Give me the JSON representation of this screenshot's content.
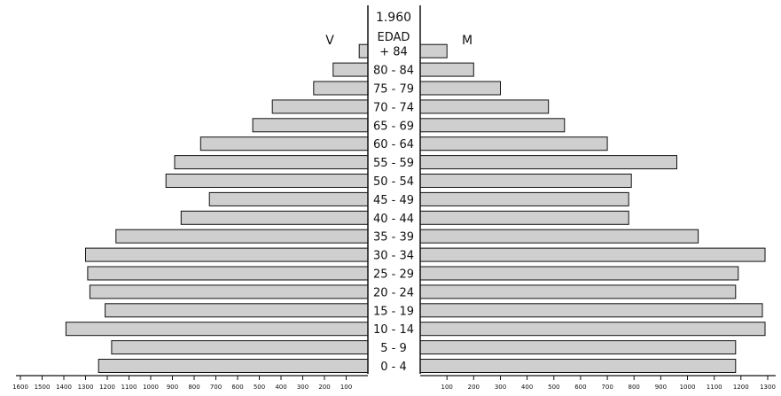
{
  "chart_data": {
    "type": "bar",
    "orientation": "horizontal-population-pyramid",
    "title": "1.960",
    "center_label": "EDAD",
    "left_label": "V",
    "right_label": "M",
    "categories": [
      "0 - 4",
      "5 - 9",
      "10 - 14",
      "15 - 19",
      "20 - 24",
      "25 - 29",
      "30 - 34",
      "35 - 39",
      "40 - 44",
      "45 - 49",
      "50 - 54",
      "55 - 59",
      "60 - 64",
      "65 - 69",
      "70 - 74",
      "75 - 79",
      "80 - 84",
      "+ 84"
    ],
    "series": [
      {
        "name": "V",
        "side": "left",
        "values": [
          1240,
          1180,
          1390,
          1210,
          1280,
          1290,
          1300,
          1160,
          860,
          730,
          930,
          890,
          770,
          530,
          440,
          250,
          160,
          40
        ]
      },
      {
        "name": "M",
        "side": "right",
        "values": [
          1180,
          1180,
          1290,
          1280,
          1180,
          1190,
          1290,
          1040,
          780,
          780,
          790,
          960,
          700,
          540,
          480,
          300,
          200,
          100
        ]
      }
    ],
    "left_ticks": [
      "1600",
      "1500",
      "1400",
      "1300",
      "1200",
      "1100",
      "1000",
      "900",
      "800",
      "700",
      "600",
      "500",
      "400",
      "300",
      "200",
      "100"
    ],
    "right_ticks": [
      "100",
      "200",
      "300",
      "400",
      "500",
      "600",
      "700",
      "800",
      "900",
      "1000",
      "1100",
      "1200",
      "1300"
    ],
    "left_xlim": [
      0,
      1600
    ],
    "right_xlim": [
      0,
      1300
    ],
    "bar_fill": "#cfcfcf",
    "bar_stroke": "#111111"
  }
}
